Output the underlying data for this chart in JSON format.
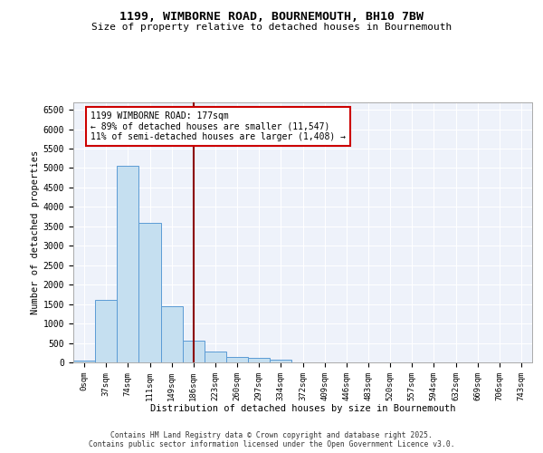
{
  "title_line1": "1199, WIMBORNE ROAD, BOURNEMOUTH, BH10 7BW",
  "title_line2": "Size of property relative to detached houses in Bournemouth",
  "xlabel": "Distribution of detached houses by size in Bournemouth",
  "ylabel": "Number of detached properties",
  "footer_line1": "Contains HM Land Registry data © Crown copyright and database right 2025.",
  "footer_line2": "Contains public sector information licensed under the Open Government Licence v3.0.",
  "bar_labels": [
    "0sqm",
    "37sqm",
    "74sqm",
    "111sqm",
    "149sqm",
    "186sqm",
    "223sqm",
    "260sqm",
    "297sqm",
    "334sqm",
    "372sqm",
    "409sqm",
    "446sqm",
    "483sqm",
    "520sqm",
    "557sqm",
    "594sqm",
    "632sqm",
    "669sqm",
    "706sqm",
    "743sqm"
  ],
  "bar_values": [
    50,
    1600,
    5050,
    3600,
    1450,
    550,
    280,
    150,
    110,
    70,
    0,
    0,
    0,
    0,
    0,
    0,
    0,
    0,
    0,
    0,
    0
  ],
  "bar_color": "#c5dff0",
  "bar_edge_color": "#5b9bd5",
  "marker_value_index": 5,
  "marker_label": "1199 WIMBORNE ROAD: 177sqm",
  "marker_line1": "← 89% of detached houses are smaller (11,547)",
  "marker_line2": "11% of semi-detached houses are larger (1,408) →",
  "marker_color": "#8b0000",
  "annotation_box_color": "#cc0000",
  "ylim": [
    0,
    6700
  ],
  "yticks": [
    0,
    500,
    1000,
    1500,
    2000,
    2500,
    3000,
    3500,
    4000,
    4500,
    5000,
    5500,
    6000,
    6500
  ],
  "background_color": "#eef2fa",
  "grid_color": "#ffffff"
}
